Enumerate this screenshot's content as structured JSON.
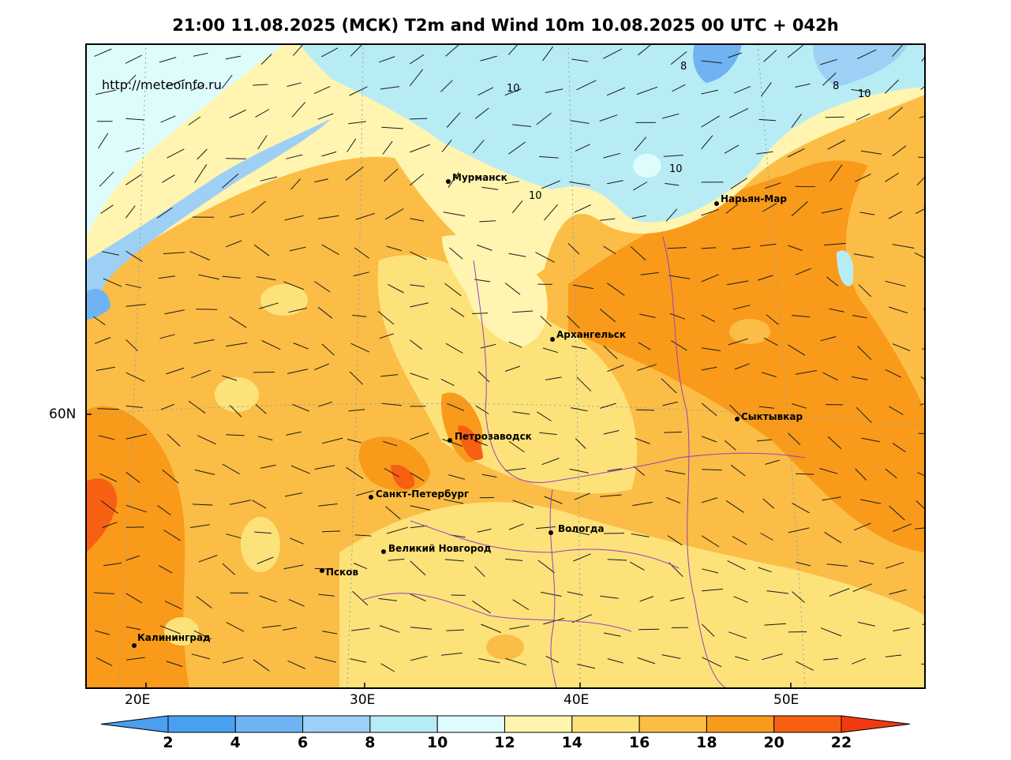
{
  "title": "21:00 11.08.2025 (МСК) T2m and Wind 10m 10.08.2025 00 UTC + 042h",
  "watermark": "http://meteoinfo.ru",
  "axes": {
    "lat_labels": [
      "60N"
    ],
    "lon_labels": [
      "20E",
      "30E",
      "40E",
      "50E"
    ]
  },
  "cities": [
    {
      "name": "Мурманск"
    },
    {
      "name": "Нарьян-Мар"
    },
    {
      "name": "Архангельск"
    },
    {
      "name": "Сыктывкар"
    },
    {
      "name": "Петрозаводск"
    },
    {
      "name": "Санкт-Петербург"
    },
    {
      "name": "Вологда"
    },
    {
      "name": "Великий Новгород"
    },
    {
      "name": "Псков"
    },
    {
      "name": "Калининград"
    }
  ],
  "contour_labels": [
    "10",
    "10",
    "10",
    "8",
    "8",
    "10"
  ],
  "colorbar": {
    "ticks": [
      "2",
      "4",
      "6",
      "8",
      "10",
      "12",
      "14",
      "16",
      "18",
      "20",
      "22"
    ],
    "colors": [
      "#4a9fef",
      "#4aa0f0",
      "#6fb3f3",
      "#9ed0f5",
      "#b8ecf5",
      "#dffcfc",
      "#fff5b0",
      "#fde27a",
      "#fbbd45",
      "#f99a1a",
      "#f75f12",
      "#f23a10"
    ]
  }
}
